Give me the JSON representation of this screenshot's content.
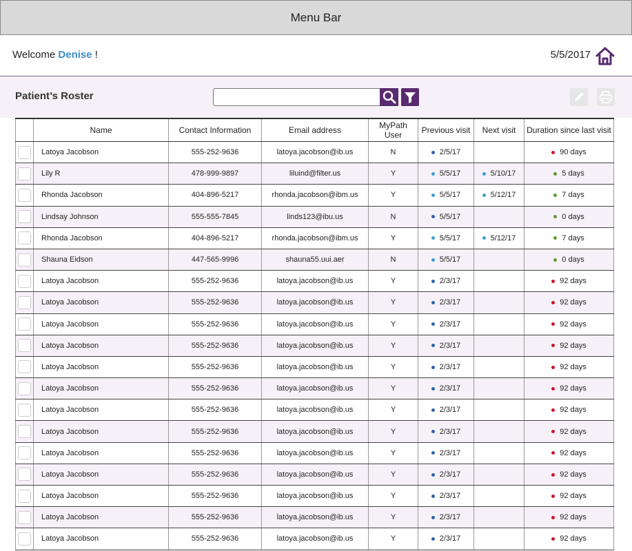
{
  "menu_bar": {
    "title": "Menu Bar"
  },
  "welcome": {
    "greeting": "Welcome",
    "user": "Denise",
    "suffix": "!",
    "date": "5/5/2017"
  },
  "toolbar": {
    "title": "Patient’s Roster"
  },
  "table": {
    "columns": [
      "Name",
      "Contact Information",
      "Email address",
      "MyPath User",
      "Previous visit",
      "Next visit",
      "Duration since last visit"
    ],
    "rows": [
      {
        "name": "Latoya Jacobson",
        "contact": "555-252-9636",
        "email": "latoya.jacobson@ib.us",
        "mypath": "N",
        "previous": "2/5/17",
        "previous_dot": "#2e62ad",
        "next": null,
        "duration": "90 days",
        "duration_dot": "#d0112b"
      },
      {
        "name": "Lily R",
        "contact": "478-999-9897",
        "email": "liluind@filter.us",
        "mypath": "Y",
        "previous": "5/5/17",
        "previous_dot": "#3f9bd6",
        "next": "5/10/17",
        "next_dot": "#3f9bd6",
        "duration": "5 days",
        "duration_dot": "#5e9a36"
      },
      {
        "name": "Rhonda Jacobson",
        "contact": "404-896-5217",
        "email": "rhonda.jacobson@ibm.us",
        "mypath": "Y",
        "previous": "5/5/17",
        "previous_dot": "#3f9bd6",
        "next": "5/12/17",
        "next_dot": "#3f9bd6",
        "duration": "7 days",
        "duration_dot": "#5e9a36"
      },
      {
        "name": "Lindsay Johnson",
        "contact": "555-555-7845",
        "email": "linds123@ibu.us",
        "mypath": "N",
        "previous": "5/5/17",
        "previous_dot": "#2e62ad",
        "next": null,
        "duration": "0 days",
        "duration_dot": "#5e9a36"
      },
      {
        "name": "Rhonda Jacobson",
        "contact": "404-896-5217",
        "email": "rhonda.jacobson@ibm.us",
        "mypath": "Y",
        "previous": "5/5/17",
        "previous_dot": "#3f9bd6",
        "next": "5/12/17",
        "next_dot": "#3f9bd6",
        "duration": "7 days",
        "duration_dot": "#5e9a36"
      },
      {
        "name": "Shauna Eidson",
        "contact": "447-565-9996",
        "email": "shauna55.uui.aer",
        "mypath": "N",
        "previous": "5/5/17",
        "previous_dot": "#3f9bd6",
        "next": null,
        "duration": "0 days",
        "duration_dot": "#5e9a36"
      },
      {
        "name": "Latoya Jacobson",
        "contact": "555-252-9636",
        "email": "latoya.jacobson@ib.us",
        "mypath": "Y",
        "previous": "2/3/17",
        "previous_dot": "#2e62ad",
        "next": null,
        "duration": "92 days",
        "duration_dot": "#d0112b"
      },
      {
        "name": "Latoya Jacobson",
        "contact": "555-252-9636",
        "email": "latoya.jacobson@ib.us",
        "mypath": "Y",
        "previous": "2/3/17",
        "previous_dot": "#2e62ad",
        "next": null,
        "duration": "92 days",
        "duration_dot": "#d0112b"
      },
      {
        "name": "Latoya Jacobson",
        "contact": "555-252-9636",
        "email": "latoya.jacobson@ib.us",
        "mypath": "Y",
        "previous": "2/3/17",
        "previous_dot": "#2e62ad",
        "next": null,
        "duration": "92 days",
        "duration_dot": "#d0112b"
      },
      {
        "name": "Latoya Jacobson",
        "contact": "555-252-9636",
        "email": "latoya.jacobson@ib.us",
        "mypath": "Y",
        "previous": "2/3/17",
        "previous_dot": "#2e62ad",
        "next": null,
        "duration": "92 days",
        "duration_dot": "#d0112b"
      },
      {
        "name": "Latoya Jacobson",
        "contact": "555-252-9636",
        "email": "latoya.jacobson@ib.us",
        "mypath": "Y",
        "previous": "2/3/17",
        "previous_dot": "#2e62ad",
        "next": null,
        "duration": "92 days",
        "duration_dot": "#d0112b"
      },
      {
        "name": "Latoya Jacobson",
        "contact": "555-252-9636",
        "email": "latoya.jacobson@ib.us",
        "mypath": "Y",
        "previous": "2/3/17",
        "previous_dot": "#2e62ad",
        "next": null,
        "duration": "92 days",
        "duration_dot": "#d0112b"
      },
      {
        "name": "Latoya Jacobson",
        "contact": "555-252-9636",
        "email": "latoya.jacobson@ib.us",
        "mypath": "Y",
        "previous": "2/3/17",
        "previous_dot": "#2e62ad",
        "next": null,
        "duration": "92 days",
        "duration_dot": "#d0112b"
      },
      {
        "name": "Latoya Jacobson",
        "contact": "555-252-9636",
        "email": "latoya.jacobson@ib.us",
        "mypath": "Y",
        "previous": "2/3/17",
        "previous_dot": "#2e62ad",
        "next": null,
        "duration": "92 days",
        "duration_dot": "#d0112b"
      },
      {
        "name": "Latoya Jacobson",
        "contact": "555-252-9636",
        "email": "latoya.jacobson@ib.us",
        "mypath": "Y",
        "previous": "2/3/17",
        "previous_dot": "#2e62ad",
        "next": null,
        "duration": "92 days",
        "duration_dot": "#d0112b"
      },
      {
        "name": "Latoya Jacobson",
        "contact": "555-252-9636",
        "email": "latoya.jacobson@ib.us",
        "mypath": "Y",
        "previous": "2/3/17",
        "previous_dot": "#2e62ad",
        "next": null,
        "duration": "92 days",
        "duration_dot": "#d0112b"
      },
      {
        "name": "Latoya Jacobson",
        "contact": "555-252-9636",
        "email": "latoya.jacobson@ib.us",
        "mypath": "Y",
        "previous": "2/3/17",
        "previous_dot": "#2e62ad",
        "next": null,
        "duration": "92 days",
        "duration_dot": "#d0112b"
      },
      {
        "name": "Latoya Jacobson",
        "contact": "555-252-9636",
        "email": "latoya.jacobson@ib.us",
        "mypath": "Y",
        "previous": "2/3/17",
        "previous_dot": "#2e62ad",
        "next": null,
        "duration": "92 days",
        "duration_dot": "#d0112b"
      },
      {
        "name": "Latoya Jacobson",
        "contact": "555-252-9636",
        "email": "latoya.jacobson@ib.us",
        "mypath": "Y",
        "previous": "2/3/17",
        "previous_dot": "#2e62ad",
        "next": null,
        "duration": "92 days",
        "duration_dot": "#d0112b"
      }
    ]
  }
}
